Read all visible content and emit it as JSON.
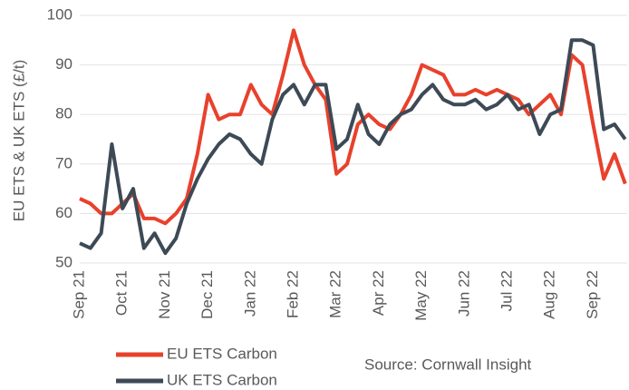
{
  "chart_data": {
    "type": "line",
    "y_label": "EU ETS & UK ETS (£/t)",
    "annotation": "Source: Cornwall Insight",
    "categories": [
      "Sep 21",
      null,
      null,
      null,
      "Oct 21",
      null,
      null,
      null,
      "Nov 21",
      null,
      null,
      null,
      "Dec 21",
      null,
      null,
      null,
      "Jan 22",
      null,
      null,
      null,
      "Feb 22",
      null,
      null,
      null,
      "Mar 22",
      null,
      null,
      null,
      "Apr 22",
      null,
      null,
      null,
      "May 22",
      null,
      null,
      null,
      "Jun 22",
      null,
      null,
      null,
      "Jul 22",
      null,
      null,
      null,
      "Aug 22",
      null,
      null,
      null,
      "Sep 22",
      null,
      null,
      null
    ],
    "series": [
      {
        "name": "EU ETS Carbon",
        "color": "#e8412c",
        "values": [
          63,
          62,
          60,
          60,
          62,
          64,
          59,
          59,
          58,
          60,
          63,
          72,
          84,
          79,
          80,
          80,
          86,
          82,
          80,
          88,
          97,
          90,
          86,
          83,
          68,
          70,
          78,
          80,
          78,
          77,
          80,
          84,
          90,
          89,
          88,
          84,
          84,
          85,
          84,
          85,
          84,
          83,
          80,
          82,
          84,
          80,
          92,
          90,
          78,
          67,
          72,
          66
        ]
      },
      {
        "name": "UK ETS Carbon",
        "color": "#3d4a56",
        "values": [
          54,
          53,
          56,
          74,
          61,
          65,
          53,
          56,
          52,
          55,
          62,
          67,
          71,
          74,
          76,
          75,
          72,
          70,
          79,
          84,
          86,
          82,
          86,
          86,
          73,
          75,
          82,
          76,
          74,
          78,
          80,
          81,
          84,
          86,
          83,
          82,
          82,
          83,
          81,
          82,
          84,
          81,
          82,
          76,
          80,
          81,
          95,
          95,
          94,
          77,
          78,
          75
        ]
      }
    ],
    "ylim": [
      50,
      100
    ],
    "yticks": [
      50,
      60,
      70,
      80,
      90,
      100
    ],
    "grid": true,
    "legend": "bottom-left"
  }
}
